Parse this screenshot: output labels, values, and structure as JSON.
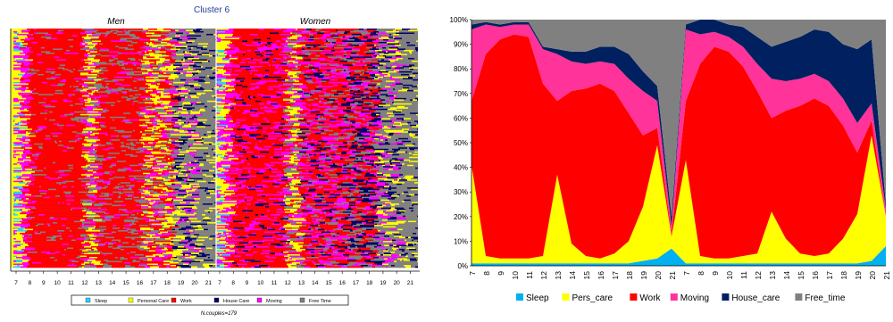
{
  "chart_data": [
    {
      "type": "heatmap",
      "title": "Cluster 6",
      "panel_labels": [
        "Men",
        "Women"
      ],
      "x_ticks": [
        "7",
        "8",
        "9",
        "10",
        "11",
        "12",
        "13",
        "14",
        "15",
        "16",
        "17",
        "18",
        "19",
        "20",
        "21"
      ],
      "legend": [
        {
          "name": "Sleep",
          "color": "#33ccff"
        },
        {
          "name": "Personal Care",
          "color": "#ffff00"
        },
        {
          "name": "Work",
          "color": "#ff0000"
        },
        {
          "name": "House Care",
          "color": "#000066"
        },
        {
          "name": "Moving",
          "color": "#ff00ff"
        },
        {
          "name": "Free Time",
          "color": "#808080"
        }
      ],
      "footnote": "N.couples=179"
    },
    {
      "type": "area",
      "stacked": true,
      "ylim": [
        0,
        100
      ],
      "y_ticks": [
        "0%",
        "10%",
        "20%",
        "30%",
        "40%",
        "50%",
        "60%",
        "70%",
        "80%",
        "90%",
        "100%"
      ],
      "categories": [
        "7",
        "8",
        "9",
        "10",
        "11",
        "12",
        "13",
        "14",
        "15",
        "16",
        "17",
        "18",
        "19",
        "20",
        "21",
        "7",
        "8",
        "9",
        "10",
        "11",
        "12",
        "13",
        "14",
        "15",
        "16",
        "17",
        "18",
        "19",
        "20",
        "21"
      ],
      "series": [
        {
          "name": "Sleep",
          "color": "#00b0f0",
          "values": [
            1,
            1,
            1,
            1,
            1,
            1,
            1,
            1,
            1,
            1,
            1,
            1,
            2,
            3,
            7,
            1,
            1,
            1,
            1,
            1,
            1,
            1,
            1,
            1,
            1,
            1,
            1,
            1,
            2,
            8
          ]
        },
        {
          "name": "Pers_care",
          "color": "#ffff00",
          "values": [
            40,
            3,
            2,
            2,
            2,
            3,
            36,
            8,
            3,
            2,
            4,
            9,
            22,
            46,
            5,
            42,
            3,
            2,
            2,
            3,
            4,
            21,
            10,
            4,
            3,
            4,
            10,
            20,
            51,
            12
          ]
        },
        {
          "name": "Work",
          "color": "#ff0000",
          "values": [
            26,
            82,
            89,
            91,
            90,
            70,
            30,
            62,
            68,
            71,
            66,
            52,
            29,
            7,
            1,
            24,
            78,
            86,
            84,
            77,
            66,
            38,
            52,
            60,
            64,
            60,
            46,
            25,
            6,
            0
          ]
        },
        {
          "name": "Moving",
          "color": "#ff3399",
          "values": [
            29,
            12,
            5,
            4,
            5,
            14,
            19,
            12,
            10,
            9,
            11,
            14,
            18,
            11,
            3,
            29,
            12,
            6,
            6,
            8,
            11,
            16,
            12,
            11,
            10,
            10,
            11,
            12,
            7,
            3
          ]
        },
        {
          "name": "House_care",
          "color": "#002060",
          "values": [
            2,
            1,
            1,
            1,
            1,
            1,
            2,
            4,
            5,
            6,
            7,
            10,
            8,
            6,
            4,
            2,
            6,
            5,
            5,
            8,
            11,
            13,
            16,
            17,
            18,
            20,
            22,
            30,
            26,
            2
          ]
        },
        {
          "name": "Free_time",
          "color": "#808080",
          "values": [
            2,
            1,
            2,
            1,
            1,
            11,
            12,
            13,
            13,
            11,
            11,
            14,
            21,
            27,
            80,
            2,
            0,
            0,
            2,
            3,
            7,
            11,
            9,
            7,
            4,
            5,
            10,
            12,
            8,
            75
          ]
        }
      ]
    }
  ]
}
